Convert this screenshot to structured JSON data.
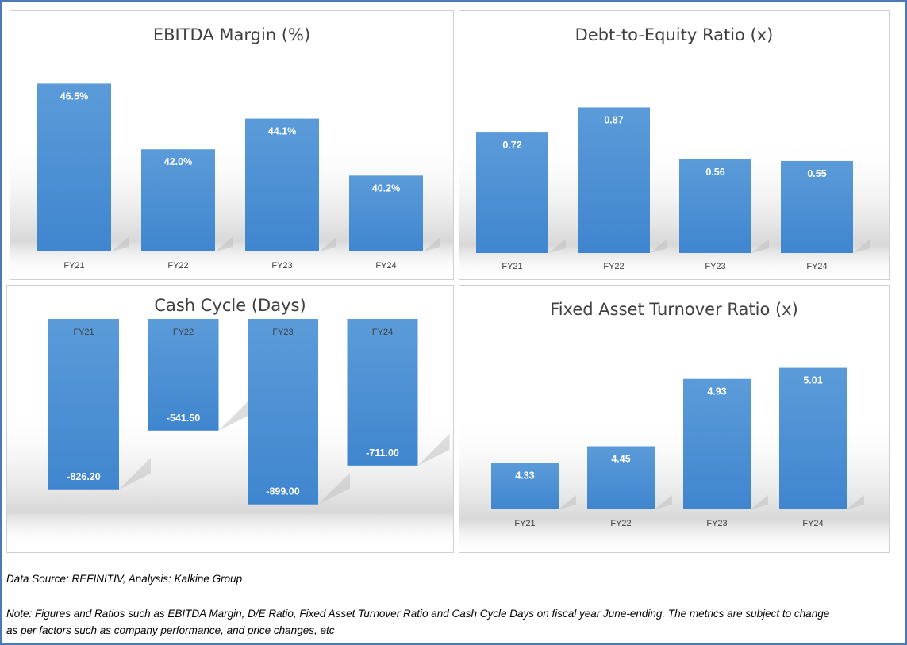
{
  "chart_data": [
    {
      "type": "bar",
      "title": "EBITDA Margin (%)",
      "categories": [
        "FY21",
        "FY22",
        "FY23",
        "FY24"
      ],
      "values": [
        46.5,
        42.0,
        44.1,
        40.2
      ],
      "value_labels": [
        "46.5%",
        "42.0%",
        "44.1%",
        "40.2%"
      ],
      "ylim": [
        35.0,
        47.5
      ],
      "bar_color": "#4a8fd4",
      "grid": false
    },
    {
      "type": "bar",
      "title": "Debt-to-Equity Ratio (x)",
      "categories": [
        "FY21",
        "FY22",
        "FY23",
        "FY24"
      ],
      "values": [
        0.72,
        0.87,
        0.56,
        0.55
      ],
      "value_labels": [
        "0.72",
        "0.87",
        "0.56",
        "0.55"
      ],
      "ylim": [
        0,
        1.0
      ],
      "bar_color": "#4a8fd4",
      "grid": false
    },
    {
      "type": "bar",
      "title": "Cash Cycle (Days)",
      "categories": [
        "FY21",
        "FY22",
        "FY23",
        "FY24"
      ],
      "values": [
        -826.2,
        -541.5,
        -899.0,
        -711.0
      ],
      "value_labels": [
        "-826.20",
        "-541.50",
        "-899.00",
        "-711.00"
      ],
      "ylim": [
        -1000,
        0
      ],
      "bar_color": "#4a8fd4",
      "grid": false
    },
    {
      "type": "bar",
      "title": "Fixed Asset Turnover Ratio (x)",
      "categories": [
        "FY21",
        "FY22",
        "FY23",
        "FY24"
      ],
      "values": [
        4.33,
        4.45,
        4.93,
        5.01
      ],
      "value_labels": [
        "4.33",
        "4.45",
        "4.93",
        "5.01"
      ],
      "ylim": [
        4.0,
        5.2
      ],
      "bar_color": "#4a8fd4",
      "grid": false
    }
  ],
  "footer": {
    "source": "Data Source: REFINITIV, Analysis: Kalkine Group",
    "note_line1": "Note: Figures and Ratios such as EBITDA Margin, D/E Ratio, Fixed Asset Turnover Ratio and Cash Cycle Days on fiscal year June-ending. The metrics are subject to change",
    "note_line2": "as per factors such as company performance, and price changes, etc"
  }
}
